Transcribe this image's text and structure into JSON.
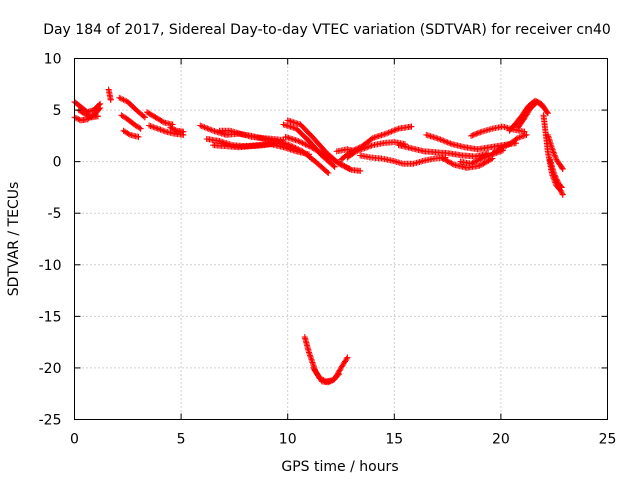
{
  "chart_data": {
    "type": "scatter",
    "title": "Day 184 of 2017, Sidereal Day-to-day VTEC variation (SDTVAR) for receiver cn40",
    "xlabel": "GPS time / hours",
    "ylabel": "SDTVAR / TECUs",
    "xlim": [
      0,
      25
    ],
    "ylim": [
      -25,
      10
    ],
    "xticks": [
      0,
      5,
      10,
      15,
      20,
      25
    ],
    "yticks": [
      -25,
      -20,
      -15,
      -10,
      -5,
      0,
      5,
      10
    ],
    "grid": true,
    "marker": "+",
    "series_color": "#ff0000",
    "series": [
      {
        "name": "s1",
        "x": [
          0.0,
          0.3,
          0.6,
          0.9,
          1.2
        ],
        "y": [
          5.8,
          5.3,
          4.8,
          5.0,
          5.6
        ]
      },
      {
        "name": "s2",
        "x": [
          0.0,
          0.3,
          0.6,
          0.9,
          1.2
        ],
        "y": [
          4.3,
          4.0,
          4.1,
          4.5,
          5.2
        ]
      },
      {
        "name": "s3",
        "x": [
          0.2,
          0.5,
          0.8,
          1.1
        ],
        "y": [
          5.0,
          4.6,
          4.3,
          4.4
        ]
      },
      {
        "name": "s4",
        "x": [
          1.6,
          1.7
        ],
        "y": [
          7.0,
          6.0
        ]
      },
      {
        "name": "s5",
        "x": [
          2.1,
          2.5,
          2.9,
          3.3
        ],
        "y": [
          6.2,
          5.8,
          5.0,
          4.3
        ]
      },
      {
        "name": "s6",
        "x": [
          2.2,
          2.5,
          2.8,
          3.1
        ],
        "y": [
          4.5,
          4.1,
          3.6,
          3.2
        ]
      },
      {
        "name": "s7",
        "x": [
          2.3,
          2.6,
          3.0
        ],
        "y": [
          3.0,
          2.6,
          2.4
        ]
      },
      {
        "name": "s8",
        "x": [
          3.4,
          3.8,
          4.2,
          4.6
        ],
        "y": [
          4.8,
          4.3,
          3.8,
          3.6
        ]
      },
      {
        "name": "s9",
        "x": [
          3.5,
          3.9,
          4.3,
          4.7,
          5.1
        ],
        "y": [
          3.5,
          3.2,
          2.9,
          2.7,
          2.6
        ]
      },
      {
        "name": "s10",
        "x": [
          4.5,
          4.8,
          5.1
        ],
        "y": [
          3.3,
          3.0,
          2.9
        ]
      },
      {
        "name": "s11",
        "x": [
          5.9,
          6.5,
          7.1,
          7.7,
          8.3,
          8.9,
          9.5,
          10.1,
          10.7,
          11.3,
          11.9
        ],
        "y": [
          3.5,
          3.0,
          2.6,
          2.7,
          2.5,
          2.2,
          2.0,
          1.6,
          1.0,
          0.0,
          -1.1
        ]
      },
      {
        "name": "s12",
        "x": [
          6.2,
          6.8,
          7.4,
          8.0,
          8.6,
          9.2,
          9.8,
          10.4,
          11.0
        ],
        "y": [
          2.2,
          2.0,
          1.6,
          1.5,
          1.6,
          1.7,
          1.4,
          1.0,
          0.7
        ]
      },
      {
        "name": "s13",
        "x": [
          6.5,
          7.1,
          7.7,
          8.3,
          8.9,
          9.5
        ],
        "y": [
          1.6,
          1.5,
          1.4,
          1.5,
          1.6,
          1.8
        ]
      },
      {
        "name": "s14",
        "x": [
          6.8,
          7.3,
          7.8,
          8.3,
          8.8,
          9.3,
          9.8
        ],
        "y": [
          3.0,
          3.0,
          2.7,
          2.4,
          2.3,
          2.2,
          2.1
        ]
      },
      {
        "name": "s15",
        "x": [
          9.8,
          10.4,
          11.0,
          11.6,
          12.2
        ],
        "y": [
          3.6,
          3.2,
          2.0,
          0.6,
          -0.5
        ]
      },
      {
        "name": "s16",
        "x": [
          9.9,
          10.5,
          11.1,
          11.7,
          12.3,
          12.9
        ],
        "y": [
          2.4,
          2.0,
          1.4,
          0.7,
          0.0,
          -0.7
        ]
      },
      {
        "name": "s17",
        "x": [
          10.0,
          10.6,
          11.2,
          11.8,
          12.4,
          13.0,
          13.4
        ],
        "y": [
          4.0,
          3.6,
          2.3,
          0.9,
          -0.2,
          -0.8,
          -0.9
        ]
      },
      {
        "name": "s18",
        "x": [
          12.3,
          12.8,
          13.2
        ],
        "y": [
          1.0,
          1.2,
          1.0
        ]
      },
      {
        "name": "s19",
        "x": [
          12.5,
          13.0,
          13.5,
          14.0,
          14.6,
          15.2,
          15.8
        ],
        "y": [
          0.2,
          1.0,
          1.5,
          2.3,
          2.7,
          3.2,
          3.4
        ]
      },
      {
        "name": "s20",
        "x": [
          12.8,
          13.2,
          13.6,
          14.0,
          14.5,
          15.0,
          15.5
        ],
        "y": [
          0.4,
          1.0,
          1.3,
          1.6,
          1.8,
          1.9,
          1.7
        ]
      },
      {
        "name": "s21",
        "x": [
          13.4,
          13.9,
          14.4,
          14.9,
          15.4,
          15.9,
          16.4,
          16.9,
          17.4
        ],
        "y": [
          0.6,
          0.4,
          0.3,
          0.1,
          -0.2,
          -0.2,
          0.1,
          0.3,
          0.4
        ]
      },
      {
        "name": "s22",
        "x": [
          15.2,
          15.8,
          16.4,
          17.0,
          17.6,
          18.2,
          18.8,
          19.4
        ],
        "y": [
          1.6,
          1.3,
          1.0,
          0.9,
          0.8,
          0.6,
          0.5,
          0.8
        ]
      },
      {
        "name": "s23",
        "x": [
          16.5,
          17.1,
          17.7,
          18.3,
          18.9,
          19.5,
          20.1,
          20.7
        ],
        "y": [
          2.6,
          2.2,
          1.7,
          1.4,
          1.2,
          1.4,
          1.6,
          1.8
        ]
      },
      {
        "name": "s24",
        "x": [
          17.2,
          17.8,
          18.4,
          19.0,
          19.6
        ],
        "y": [
          0.4,
          -0.3,
          -0.6,
          -0.4,
          0.3
        ]
      },
      {
        "name": "s25",
        "x": [
          18.1,
          18.6,
          19.1,
          19.6,
          20.1
        ],
        "y": [
          0.0,
          -0.2,
          0.3,
          0.7,
          1.1
        ]
      },
      {
        "name": "s26",
        "x": [
          18.6,
          19.1,
          19.6,
          20.1,
          20.6,
          21.1
        ],
        "y": [
          2.5,
          2.9,
          3.2,
          3.4,
          3.1,
          2.9
        ]
      },
      {
        "name": "s27",
        "x": [
          19.6,
          20.0,
          20.4,
          20.8,
          21.2
        ],
        "y": [
          0.8,
          1.3,
          1.7,
          2.3,
          2.6
        ]
      },
      {
        "name": "s28",
        "x": [
          20.4,
          20.7,
          21.0,
          21.3,
          21.6,
          21.9,
          22.2
        ],
        "y": [
          3.0,
          3.7,
          4.5,
          5.4,
          5.9,
          5.6,
          4.7
        ]
      },
      {
        "name": "s29",
        "x": [
          20.8,
          21.1,
          21.4,
          21.7,
          22.0
        ],
        "y": [
          3.3,
          4.2,
          5.2,
          5.8,
          5.3
        ]
      },
      {
        "name": "s30",
        "x": [
          22.0,
          22.2,
          22.4,
          22.6,
          22.8,
          22.9
        ],
        "y": [
          4.5,
          1.0,
          -1.2,
          -2.3,
          -2.8,
          -3.2
        ]
      },
      {
        "name": "s31",
        "x": [
          22.2,
          22.4,
          22.6,
          22.8,
          22.9
        ],
        "y": [
          2.6,
          1.3,
          0.2,
          -0.4,
          -0.7
        ]
      },
      {
        "name": "s32",
        "x": [
          22.3,
          22.5,
          22.7,
          22.85
        ],
        "y": [
          0.2,
          -1.2,
          -2.1,
          -2.5
        ]
      },
      {
        "name": "s33",
        "x": [
          10.8,
          11.0,
          11.3,
          11.6,
          11.9,
          12.2,
          12.5,
          12.8
        ],
        "y": [
          -17.0,
          -18.5,
          -20.3,
          -21.3,
          -21.4,
          -21.1,
          -20.0,
          -19.0
        ]
      },
      {
        "name": "s34",
        "x": [
          11.2,
          11.5,
          11.8,
          12.1,
          12.4
        ],
        "y": [
          -20.0,
          -21.0,
          -21.3,
          -21.2,
          -20.6
        ]
      }
    ]
  }
}
